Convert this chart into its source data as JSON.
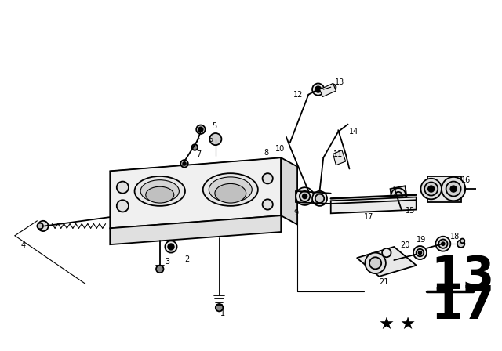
{
  "bg_color": "#ffffff",
  "fg_color": "#000000",
  "lw_main": 1.3,
  "lw_thin": 0.8,
  "lw_thick": 1.8
}
